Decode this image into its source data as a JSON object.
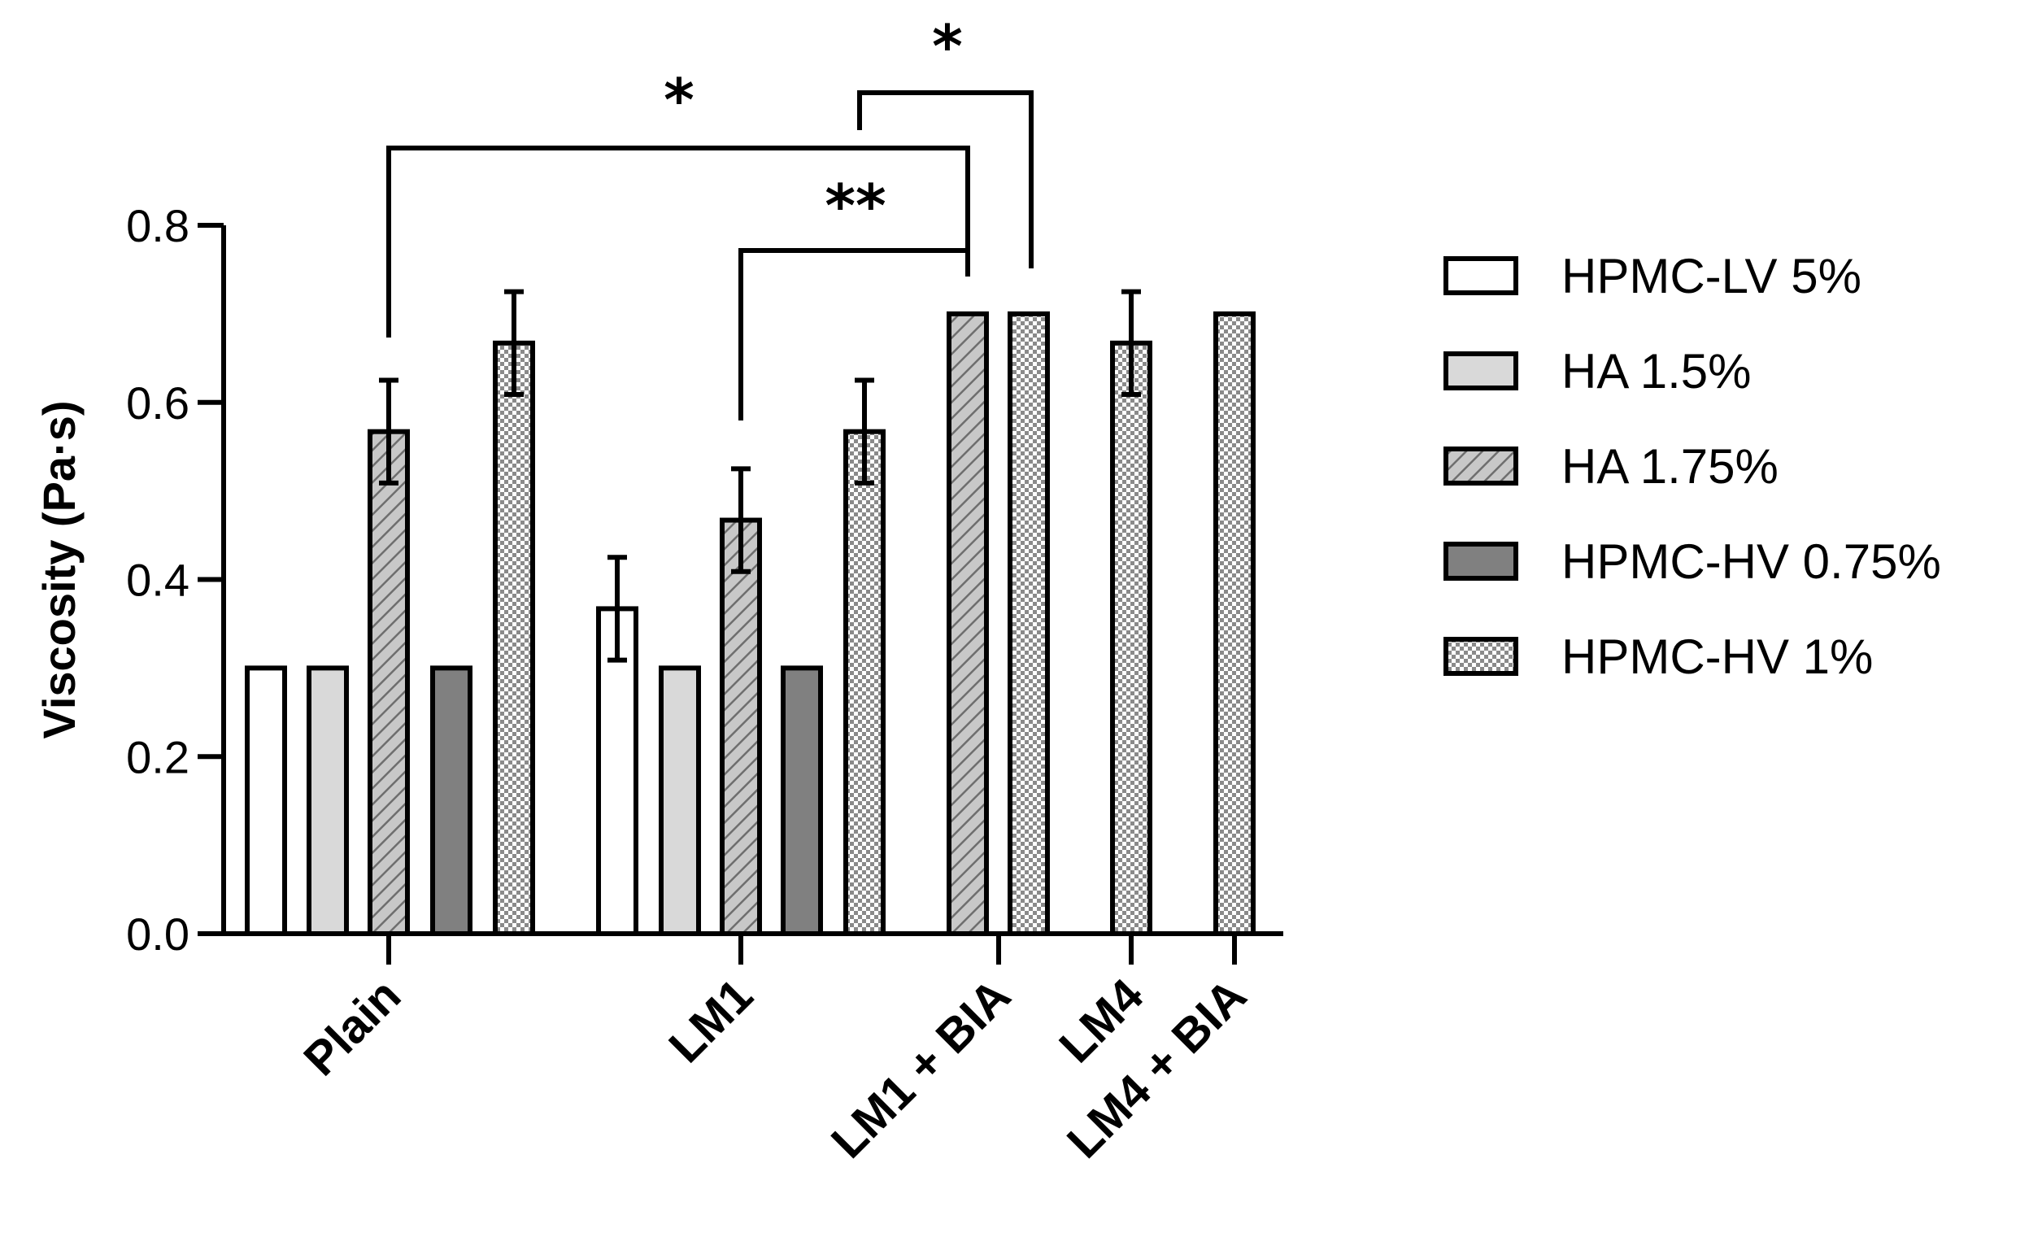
{
  "chart_data": {
    "type": "bar",
    "ylabel": "Viscosity (Pa·s)",
    "xlabel": "",
    "ylim": [
      0,
      0.8
    ],
    "yticks": [
      "0.0",
      "0.2",
      "0.4",
      "0.6",
      "0.8"
    ],
    "categories": [
      "Plain",
      "LM1",
      "LM1 + BIA",
      "LM4",
      "LM4 + BIA"
    ],
    "series": [
      {
        "name": "HPMC-LV 5%",
        "fill": "#ffffff",
        "pattern": "none",
        "values": [
          0.3,
          0.367,
          null,
          null,
          null
        ],
        "errors": [
          0,
          0.058,
          null,
          null,
          null
        ]
      },
      {
        "name": "HA 1.5%",
        "fill": "#d9d9d9",
        "pattern": "none",
        "values": [
          0.3,
          0.3,
          null,
          null,
          null
        ],
        "errors": [
          0,
          0,
          null,
          null,
          null
        ]
      },
      {
        "name": "HA 1.75%",
        "fill": "#c8c8c8",
        "pattern": "hatch",
        "values": [
          0.567,
          0.467,
          0.7,
          null,
          null
        ],
        "errors": [
          0.058,
          0.058,
          0,
          null,
          null
        ]
      },
      {
        "name": "HPMC-HV 0.75%",
        "fill": "#808080",
        "pattern": "none",
        "values": [
          0.3,
          0.3,
          null,
          null,
          null
        ],
        "errors": [
          0,
          0,
          null,
          null,
          null
        ]
      },
      {
        "name": "HPMC-HV 1%",
        "fill": "#ffffff",
        "pattern": "checker",
        "values": [
          0.667,
          0.567,
          0.7,
          0.667,
          0.7
        ],
        "errors": [
          0.058,
          0.058,
          0,
          0.058,
          0
        ]
      }
    ],
    "significance": [
      {
        "label": "*",
        "from": "Plain / HA 1.75%",
        "to": "LM1 + BIA / HA 1.75%"
      },
      {
        "label": "**",
        "from": "LM1 / HA 1.75%",
        "to": "LM1 + BIA / HA 1.75%"
      },
      {
        "label": "*",
        "from": "LM1 / HPMC-HV 1%",
        "to": "LM1 + BIA / HPMC-HV 1%"
      }
    ],
    "legend_position": "right",
    "grid": false
  }
}
